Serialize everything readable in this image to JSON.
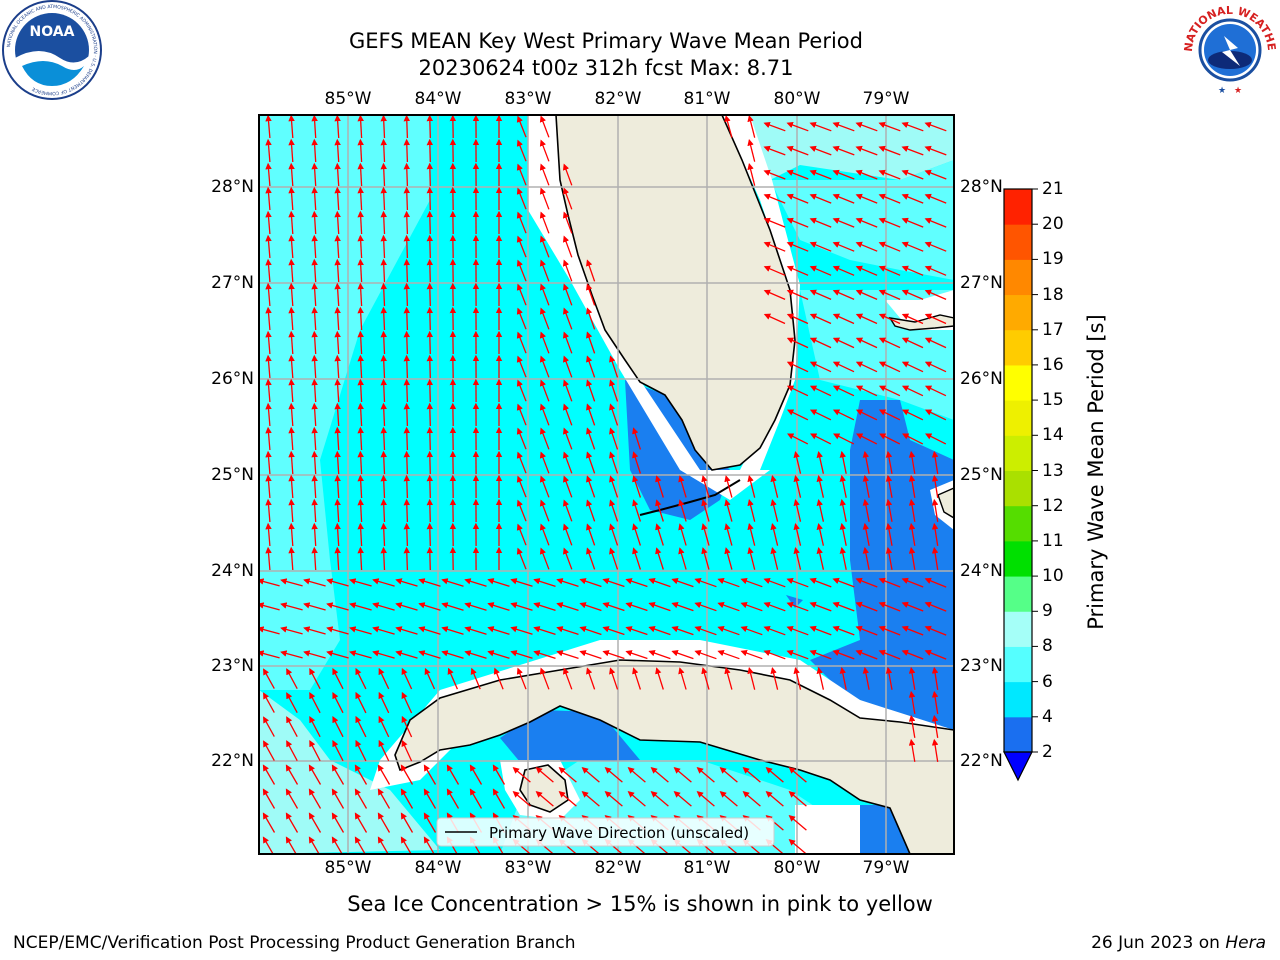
{
  "header": {
    "title_line1": "GEFS MEAN Key West Primary Wave Mean Period",
    "title_line2": "20230624 t00z 312h fcst   Max: 8.71"
  },
  "logos": {
    "noaa_text": "NOAA",
    "noaa_ring_text": "NATIONAL OCEANIC AND ATMOSPHERIC ADMINISTRATION · U.S. DEPARTMENT OF COMMERCE",
    "nws_ring_text": "NATIONAL WEATHER SERVICE"
  },
  "map": {
    "lon_labels": [
      "85°W",
      "84°W",
      "83°W",
      "82°W",
      "81°W",
      "80°W",
      "79°W"
    ],
    "lat_labels": [
      "28°N",
      "27°N",
      "26°N",
      "25°N",
      "24°N",
      "23°N",
      "22°N"
    ],
    "legend_label": "Primary Wave Direction (unscaled)",
    "colors": {
      "land": "#eeecdc",
      "ocean_main": "#00ffff",
      "ocean_light": "#60ffff",
      "ocean_pale": "#9ffbf7",
      "ocean_blue": "#1a7ff0",
      "ocean_dark": "#0000ee",
      "arrow": "#ff0000",
      "grid": "#b0b0b0"
    }
  },
  "colorbar": {
    "label": "Primary Wave Mean Period [s]",
    "ticks": [
      "2",
      "4",
      "6",
      "8",
      "9",
      "10",
      "11",
      "12",
      "13",
      "14",
      "15",
      "16",
      "17",
      "18",
      "19",
      "20",
      "21"
    ],
    "colors": [
      "#1a6ff0",
      "#00e8ff",
      "#55ffff",
      "#a5fff8",
      "#55ff88",
      "#00e000",
      "#55dd00",
      "#aae000",
      "#ccee00",
      "#eef000",
      "#ffff00",
      "#ffcc00",
      "#ffaa00",
      "#ff8800",
      "#ff5500",
      "#ff2200"
    ],
    "extend_color": "#0000ff"
  },
  "footer": {
    "note": "Sea Ice Concentration > 15% is shown in pink to yellow",
    "left": "NCEP/EMC/Verification Post Processing Product Generation Branch",
    "right_date": "26 Jun 2023 on ",
    "right_host": "Hera"
  }
}
